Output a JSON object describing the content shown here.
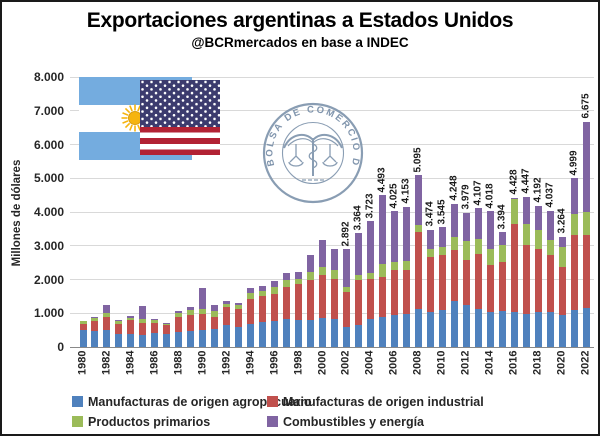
{
  "title": "Exportaciones argentinas a Estados Unidos",
  "subtitle": "@BCRmercados en base a INDEC",
  "logo": {
    "ring_text": "BOLSA DE COMERCIO DE ROSARIO"
  },
  "colors": {
    "moa_blue": "#4F81BD",
    "moi_red": "#C0504D",
    "pp_green": "#9BBB59",
    "cye_purple": "#8064A2",
    "gridline": "#d9d9d9",
    "logo_blue_gray": "#8095AD",
    "ar_flag_blue": "#74ACDF",
    "ar_sun_gold": "#F6B40E",
    "us_navy": "#3C3B6E",
    "us_red": "#B22234"
  },
  "chart_data": {
    "type": "bar",
    "stacked": true,
    "title": "Exportaciones argentinas a Estados Unidos",
    "subtitle": "@BCRmercados en base a INDEC",
    "xlabel": "",
    "ylabel": "Millones de dólares",
    "ylim": [
      0,
      8000
    ],
    "grid": true,
    "legend_position": "bottom",
    "ytick_values": [
      0,
      1000,
      2000,
      3000,
      4000,
      5000,
      6000,
      7000,
      8000
    ],
    "ytick_labels": [
      "0",
      "1.000",
      "2.000",
      "3.000",
      "4.000",
      "5.000",
      "6.000",
      "7.000",
      "8.000"
    ],
    "xtick_every": 2,
    "categories": [
      1980,
      1981,
      1982,
      1983,
      1984,
      1985,
      1986,
      1987,
      1988,
      1989,
      1990,
      1991,
      1992,
      1993,
      1994,
      1995,
      1996,
      1997,
      1998,
      1999,
      2000,
      2001,
      2002,
      2003,
      2004,
      2005,
      2006,
      2007,
      2008,
      2009,
      2010,
      2011,
      2012,
      2013,
      2014,
      2015,
      2016,
      2017,
      2018,
      2019,
      2020,
      2021,
      2022
    ],
    "series": [
      {
        "name": "Manufacturas de origen agropecuario",
        "color": "#4F81BD",
        "values": [
          490,
          465,
          495,
          375,
          395,
          365,
          425,
          395,
          445,
          465,
          515,
          545,
          660,
          595,
          670,
          740,
          770,
          820,
          790,
          790,
          860,
          840,
          600,
          660,
          840,
          890,
          940,
          990,
          1135,
          1040,
          1090,
          1350,
          1235,
          1115,
          1040,
          1060,
          1040,
          990,
          1040,
          1040,
          940,
          1100,
          1150
        ]
      },
      {
        "name": "Manufacturas de origen industrial",
        "color": "#C0504D",
        "values": [
          185,
          305,
          395,
          315,
          395,
          355,
          295,
          245,
          445,
          495,
          475,
          345,
          515,
          545,
          760,
          760,
          810,
          960,
          1085,
          1185,
          1265,
          1185,
          1030,
          1315,
          1185,
          1185,
          1330,
          1285,
          2270,
          1630,
          1650,
          1510,
          1330,
          1650,
          1385,
          1460,
          2615,
          2025,
          1875,
          1680,
          1430,
          2210,
          2170
        ]
      },
      {
        "name": "Productos primarios",
        "color": "#9BBB59",
        "values": [
          85,
          90,
          120,
          70,
          80,
          100,
          90,
          70,
          130,
          130,
          150,
          170,
          100,
          100,
          180,
          150,
          200,
          200,
          150,
          245,
          245,
          245,
          150,
          150,
          180,
          395,
          245,
          265,
          215,
          245,
          225,
          395,
          565,
          425,
          490,
          495,
          740,
          640,
          545,
          445,
          600,
          640,
          680
        ]
      },
      {
        "name": "Combustibles y energía",
        "color": "#8064A2",
        "values": [
          0,
          30,
          225,
          30,
          50,
          395,
          10,
          10,
          40,
          95,
          610,
          175,
          80,
          65,
          150,
          160,
          175,
          225,
          200,
          495,
          790,
          640,
          1112,
          1239,
          1518,
          2023,
          1510,
          1613,
          1475,
          559,
          580,
          993,
          849,
          917,
          1103,
          379,
          33,
          792,
          732,
          872,
          294,
          1049,
          2675
        ]
      }
    ],
    "totals": [
      760,
      890,
      1235,
      790,
      920,
      1215,
      820,
      720,
      1060,
      1185,
      1750,
      1235,
      1355,
      1305,
      1760,
      1810,
      1955,
      2205,
      2225,
      2715,
      3160,
      2910,
      2892,
      3364,
      3723,
      4493,
      4025,
      4153,
      5095,
      3474,
      3545,
      4248,
      3979,
      4107,
      4018,
      3394,
      4428,
      4447,
      4192,
      4037,
      3264,
      4999,
      6675
    ],
    "total_labels": [
      "",
      "",
      "",
      "",
      "",
      "",
      "",
      "",
      "",
      "",
      "",
      "",
      "",
      "",
      "",
      "",
      "",
      "",
      "",
      "",
      "",
      "",
      "2.892",
      "3.364",
      "3.723",
      "4.493",
      "4.025",
      "4.153",
      "5.095",
      "3.474",
      "3.545",
      "4.248",
      "3.979",
      "4.107",
      "4.018",
      "3.394",
      "4.428",
      "4.447",
      "4.192",
      "4.037",
      "3.264",
      "4.999",
      "6.675"
    ]
  }
}
